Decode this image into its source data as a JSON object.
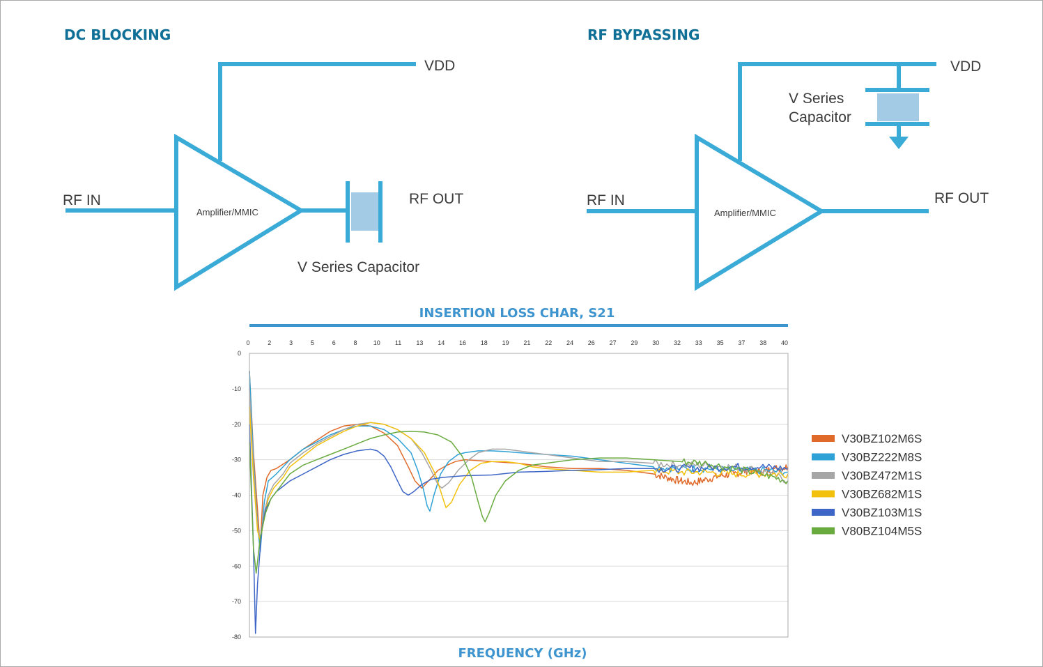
{
  "colors": {
    "wire": "#3aaad6",
    "cap_fill": "#a4cbe6",
    "heading": "#0f6f96",
    "chart_title": "#3d94cf",
    "grid": "#d9d9d9",
    "axis": "#aaaaaa"
  },
  "dc_blocking": {
    "title": "DC BLOCKING",
    "vdd_label": "VDD",
    "rf_in_label": "RF IN",
    "rf_out_label": "RF OUT",
    "amp_label": "Amplifier/MMIC",
    "cap_label": "V Series Capacitor"
  },
  "rf_bypassing": {
    "title": "RF BYPASSING",
    "vdd_label": "VDD",
    "rf_in_label": "RF IN",
    "rf_out_label": "RF OUT",
    "amp_label": "Amplifier/MMIC",
    "cap_label_line1": "V Series",
    "cap_label_line2": "Capacitor"
  },
  "chart_data": {
    "type": "line",
    "title": "INSERTION LOSS CHAR, S21",
    "xlabel": "FREQUENCY (GHz)",
    "ylabel": "",
    "x_tick_labels": [
      "0",
      "2",
      "3",
      "5",
      "6",
      "8",
      "10",
      "11",
      "13",
      "14",
      "16",
      "18",
      "19",
      "21",
      "22",
      "24",
      "26",
      "27",
      "29",
      "30",
      "32",
      "33",
      "35",
      "37",
      "38",
      "40"
    ],
    "xlim": [
      0,
      40
    ],
    "y_ticks": [
      0,
      -10,
      -20,
      -30,
      -40,
      -50,
      -60,
      -70,
      -80
    ],
    "ylim": [
      -80,
      0
    ],
    "grid": true,
    "legend_position": "right",
    "series": [
      {
        "name": "V30BZ102M6S",
        "color": "#e06a2a",
        "points": [
          [
            0,
            -5
          ],
          [
            0.3,
            -28
          ],
          [
            0.6,
            -44
          ],
          [
            0.8,
            -55
          ],
          [
            1.0,
            -40
          ],
          [
            1.3,
            -35
          ],
          [
            1.6,
            -33
          ],
          [
            2,
            -32.5
          ],
          [
            3,
            -30
          ],
          [
            4,
            -27
          ],
          [
            5,
            -24.5
          ],
          [
            6,
            -22
          ],
          [
            7,
            -20.5
          ],
          [
            8,
            -20
          ],
          [
            9,
            -20.5
          ],
          [
            10,
            -22.5
          ],
          [
            11,
            -26
          ],
          [
            11.8,
            -32
          ],
          [
            12.3,
            -36
          ],
          [
            12.8,
            -38
          ],
          [
            13.3,
            -36
          ],
          [
            14,
            -33
          ],
          [
            14.7,
            -31.5
          ],
          [
            15.3,
            -30.5
          ],
          [
            16,
            -30
          ],
          [
            18,
            -30.5
          ],
          [
            20,
            -31
          ],
          [
            22,
            -32
          ],
          [
            24,
            -32.5
          ],
          [
            26,
            -32.5
          ],
          [
            28,
            -33
          ],
          [
            29,
            -33.5
          ],
          [
            30,
            -34
          ],
          [
            31,
            -35
          ],
          [
            32,
            -36
          ],
          [
            33,
            -36.5
          ],
          [
            34,
            -35.5
          ],
          [
            35,
            -34.5
          ],
          [
            36,
            -34
          ],
          [
            37,
            -33
          ],
          [
            38,
            -33.5
          ],
          [
            39,
            -32.5
          ],
          [
            40,
            -32
          ]
        ],
        "noise_from": 29.5
      },
      {
        "name": "V30BZ222M8S",
        "color": "#2ea1d6",
        "points": [
          [
            0,
            -5
          ],
          [
            0.3,
            -30
          ],
          [
            0.6,
            -48
          ],
          [
            0.8,
            -56
          ],
          [
            1.1,
            -42
          ],
          [
            1.4,
            -36
          ],
          [
            1.7,
            -35
          ],
          [
            2,
            -34
          ],
          [
            3,
            -30
          ],
          [
            4,
            -27
          ],
          [
            5,
            -25
          ],
          [
            6,
            -23
          ],
          [
            7,
            -21.5
          ],
          [
            8,
            -20.5
          ],
          [
            9,
            -20.5
          ],
          [
            10,
            -21.5
          ],
          [
            11,
            -24
          ],
          [
            12,
            -28
          ],
          [
            12.5,
            -33
          ],
          [
            12.9,
            -38
          ],
          [
            13.2,
            -43
          ],
          [
            13.4,
            -44.5
          ],
          [
            13.7,
            -40
          ],
          [
            14.2,
            -34
          ],
          [
            14.8,
            -30.5
          ],
          [
            15.5,
            -28.5
          ],
          [
            16,
            -28
          ],
          [
            17,
            -27.5
          ],
          [
            18,
            -27.5
          ],
          [
            19,
            -27.7
          ],
          [
            20,
            -28
          ],
          [
            22,
            -28.5
          ],
          [
            24,
            -29
          ],
          [
            26,
            -30
          ],
          [
            28,
            -31
          ],
          [
            30,
            -32
          ],
          [
            32,
            -32.5
          ],
          [
            34,
            -32.5
          ],
          [
            36,
            -33
          ],
          [
            38,
            -33
          ],
          [
            40,
            -33.5
          ]
        ],
        "noise_from": 29.5
      },
      {
        "name": "V30BZ472M1S",
        "color": "#a6a6a6",
        "points": [
          [
            0,
            -10
          ],
          [
            0.3,
            -32
          ],
          [
            0.6,
            -49
          ],
          [
            0.8,
            -52
          ],
          [
            1.1,
            -45
          ],
          [
            1.4,
            -40
          ],
          [
            1.8,
            -37
          ],
          [
            2.5,
            -34
          ],
          [
            3,
            -31
          ],
          [
            4,
            -28
          ],
          [
            5,
            -25.5
          ],
          [
            6,
            -23.5
          ],
          [
            7,
            -21.5
          ],
          [
            8,
            -20
          ],
          [
            9,
            -19.5
          ],
          [
            10,
            -20
          ],
          [
            11,
            -21.5
          ],
          [
            12,
            -24
          ],
          [
            12.8,
            -28
          ],
          [
            13.5,
            -33
          ],
          [
            14,
            -37
          ],
          [
            14.3,
            -38
          ],
          [
            14.8,
            -36.5
          ],
          [
            15.5,
            -33
          ],
          [
            16.3,
            -30
          ],
          [
            17,
            -28
          ],
          [
            18,
            -27
          ],
          [
            19,
            -27
          ],
          [
            20,
            -27.5
          ],
          [
            22,
            -28.5
          ],
          [
            24,
            -29.5
          ],
          [
            26,
            -30.5
          ],
          [
            28,
            -30.5
          ],
          [
            30,
            -31
          ],
          [
            32,
            -31.5
          ],
          [
            34,
            -31.5
          ],
          [
            36,
            -32
          ],
          [
            38,
            -33
          ],
          [
            40,
            -36
          ]
        ],
        "noise_from": 29
      },
      {
        "name": "V30BZ682M1S",
        "color": "#f2c10d",
        "points": [
          [
            0,
            -15
          ],
          [
            0.3,
            -35
          ],
          [
            0.6,
            -50
          ],
          [
            0.8,
            -53
          ],
          [
            1.1,
            -46
          ],
          [
            1.4,
            -41
          ],
          [
            1.8,
            -38
          ],
          [
            2.5,
            -35
          ],
          [
            3,
            -32
          ],
          [
            4,
            -29
          ],
          [
            5,
            -26
          ],
          [
            6,
            -24
          ],
          [
            7,
            -22
          ],
          [
            8,
            -20.5
          ],
          [
            9,
            -19.5
          ],
          [
            10,
            -20
          ],
          [
            11,
            -21.5
          ],
          [
            12,
            -24
          ],
          [
            13,
            -28
          ],
          [
            13.8,
            -34
          ],
          [
            14.3,
            -40
          ],
          [
            14.6,
            -43.5
          ],
          [
            15,
            -42
          ],
          [
            15.6,
            -37
          ],
          [
            16.4,
            -33
          ],
          [
            17.2,
            -31
          ],
          [
            18,
            -30.5
          ],
          [
            19,
            -30.5
          ],
          [
            20,
            -31
          ],
          [
            21,
            -32
          ],
          [
            22,
            -32.5
          ],
          [
            24,
            -33
          ],
          [
            26,
            -33.5
          ],
          [
            28,
            -33.5
          ],
          [
            30,
            -33
          ],
          [
            32,
            -33.5
          ],
          [
            34,
            -33.5
          ],
          [
            36,
            -34
          ],
          [
            38,
            -34
          ],
          [
            40,
            -34
          ]
        ],
        "noise_from": 29.5
      },
      {
        "name": "V30BZ103M1S",
        "color": "#3e66c6",
        "points": [
          [
            0,
            -20
          ],
          [
            0.3,
            -55
          ],
          [
            0.45,
            -79
          ],
          [
            0.6,
            -65
          ],
          [
            0.9,
            -50
          ],
          [
            1.2,
            -44
          ],
          [
            1.6,
            -41
          ],
          [
            2,
            -39
          ],
          [
            3,
            -36
          ],
          [
            4,
            -34
          ],
          [
            5,
            -32
          ],
          [
            6,
            -30
          ],
          [
            7,
            -28.5
          ],
          [
            8,
            -27.5
          ],
          [
            9,
            -27
          ],
          [
            9.5,
            -27.5
          ],
          [
            10,
            -29
          ],
          [
            10.5,
            -32
          ],
          [
            11,
            -36
          ],
          [
            11.4,
            -39
          ],
          [
            11.8,
            -40
          ],
          [
            12.2,
            -39
          ],
          [
            12.8,
            -37
          ],
          [
            13.5,
            -35.5
          ],
          [
            14.3,
            -35
          ],
          [
            15,
            -34.8
          ],
          [
            16,
            -34.5
          ],
          [
            18,
            -34.3
          ],
          [
            20,
            -33.5
          ],
          [
            22,
            -33.3
          ],
          [
            24,
            -33
          ],
          [
            26,
            -32.8
          ],
          [
            28,
            -32.5
          ],
          [
            30,
            -32.5
          ],
          [
            32,
            -32.5
          ],
          [
            34,
            -32.3
          ],
          [
            36,
            -32
          ],
          [
            38,
            -32
          ],
          [
            40,
            -32.5
          ]
        ],
        "noise_from": 29.5
      },
      {
        "name": "V80BZ104M5S",
        "color": "#6aab3f",
        "points": [
          [
            0,
            -25
          ],
          [
            0.3,
            -55
          ],
          [
            0.5,
            -62
          ],
          [
            0.8,
            -52
          ],
          [
            1.2,
            -45
          ],
          [
            1.6,
            -41
          ],
          [
            2,
            -39
          ],
          [
            3,
            -34
          ],
          [
            4,
            -31.5
          ],
          [
            5,
            -30
          ],
          [
            6,
            -28.5
          ],
          [
            7,
            -27
          ],
          [
            8,
            -25.5
          ],
          [
            9,
            -24
          ],
          [
            10,
            -23
          ],
          [
            11,
            -22.2
          ],
          [
            12,
            -22
          ],
          [
            13,
            -22.2
          ],
          [
            14,
            -23
          ],
          [
            15,
            -25
          ],
          [
            15.8,
            -29
          ],
          [
            16.5,
            -35
          ],
          [
            17,
            -42
          ],
          [
            17.3,
            -46
          ],
          [
            17.5,
            -47.5
          ],
          [
            17.8,
            -45
          ],
          [
            18.3,
            -40
          ],
          [
            19,
            -36
          ],
          [
            20,
            -33
          ],
          [
            21,
            -31.5
          ],
          [
            22,
            -31
          ],
          [
            24,
            -30
          ],
          [
            26,
            -29.5
          ],
          [
            28,
            -29.5
          ],
          [
            30,
            -30
          ],
          [
            32,
            -30.5
          ],
          [
            34,
            -31
          ],
          [
            36,
            -32.5
          ],
          [
            38,
            -34
          ],
          [
            40,
            -36
          ]
        ],
        "noise_from": 31
      }
    ]
  }
}
